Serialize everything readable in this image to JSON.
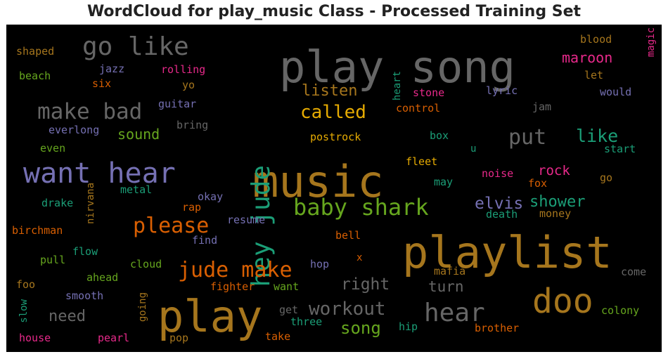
{
  "title": "WordCloud for play_music Class - Processed Training Set",
  "chart_data": {
    "type": "wordcloud",
    "title": "WordCloud for play_music Class - Processed Training Set",
    "background": "#000000",
    "palette": [
      "#1b9e77",
      "#d95f02",
      "#7570b3",
      "#e7298a",
      "#66a61e",
      "#e6ab02",
      "#a6761d",
      "#666666"
    ],
    "words": [
      {
        "text": "play song",
        "weight": 100,
        "color": "#666666"
      },
      {
        "text": "music",
        "weight": 97,
        "color": "#a6761d"
      },
      {
        "text": "playlist",
        "weight": 96,
        "color": "#a6761d"
      },
      {
        "text": "play",
        "weight": 95,
        "color": "#a6761d"
      },
      {
        "text": "doo",
        "weight": 70,
        "color": "#a6761d"
      },
      {
        "text": "want hear",
        "weight": 62,
        "color": "#7570b3"
      },
      {
        "text": "hey jude",
        "weight": 58,
        "color": "#1b9e77"
      },
      {
        "text": "go like",
        "weight": 54,
        "color": "#666666"
      },
      {
        "text": "hear",
        "weight": 54,
        "color": "#666666"
      },
      {
        "text": "baby shark",
        "weight": 47,
        "color": "#66a61e"
      },
      {
        "text": "make bad",
        "weight": 47,
        "color": "#666666"
      },
      {
        "text": "jude make",
        "weight": 45,
        "color": "#d95f02"
      },
      {
        "text": "please",
        "weight": 45,
        "color": "#d95f02"
      },
      {
        "text": "put",
        "weight": 45,
        "color": "#666666"
      },
      {
        "text": "workout",
        "weight": 39,
        "color": "#666666"
      },
      {
        "text": "called",
        "weight": 39,
        "color": "#e6ab02"
      },
      {
        "text": "like",
        "weight": 37,
        "color": "#1b9e77"
      },
      {
        "text": "song",
        "weight": 36,
        "color": "#66a61e"
      },
      {
        "text": "right",
        "weight": 34,
        "color": "#666666"
      },
      {
        "text": "elvis",
        "weight": 34,
        "color": "#7570b3"
      },
      {
        "text": "listen",
        "weight": 32,
        "color": "#a6761d"
      },
      {
        "text": "need",
        "weight": 32,
        "color": "#666666"
      },
      {
        "text": "shower",
        "weight": 32,
        "color": "#1b9e77"
      },
      {
        "text": "turn",
        "weight": 31,
        "color": "#666666"
      },
      {
        "text": "sound",
        "weight": 30,
        "color": "#66a61e"
      },
      {
        "text": "maroon",
        "weight": 30,
        "color": "#e7298a"
      },
      {
        "text": "rock",
        "weight": 29,
        "color": "#e7298a"
      },
      {
        "text": "rolling",
        "weight": 22,
        "color": "#e7298a"
      },
      {
        "text": "jazz",
        "weight": 21,
        "color": "#7570b3"
      },
      {
        "text": "shaped",
        "weight": 21,
        "color": "#a6761d"
      },
      {
        "text": "beach",
        "weight": 21,
        "color": "#66a61e"
      },
      {
        "text": "six",
        "weight": 20,
        "color": "#d95f02"
      },
      {
        "text": "yo",
        "weight": 20,
        "color": "#a6761d"
      },
      {
        "text": "guitar",
        "weight": 20,
        "color": "#7570b3"
      },
      {
        "text": "everlong",
        "weight": 20,
        "color": "#7570b3"
      },
      {
        "text": "bring",
        "weight": 20,
        "color": "#666666"
      },
      {
        "text": "even",
        "weight": 19,
        "color": "#66a61e"
      },
      {
        "text": "blood",
        "weight": 20,
        "color": "#a6761d"
      },
      {
        "text": "magic",
        "weight": 19,
        "color": "#e7298a"
      },
      {
        "text": "heart",
        "weight": 19,
        "color": "#1b9e77"
      },
      {
        "text": "let",
        "weight": 19,
        "color": "#a6761d"
      },
      {
        "text": "stone",
        "weight": 20,
        "color": "#e7298a"
      },
      {
        "text": "lyric",
        "weight": 20,
        "color": "#7570b3"
      },
      {
        "text": "would",
        "weight": 20,
        "color": "#7570b3"
      },
      {
        "text": "control",
        "weight": 20,
        "color": "#d95f02"
      },
      {
        "text": "jam",
        "weight": 19,
        "color": "#666666"
      },
      {
        "text": "postrock",
        "weight": 20,
        "color": "#e6ab02"
      },
      {
        "text": "box",
        "weight": 19,
        "color": "#1b9e77"
      },
      {
        "text": "u",
        "weight": 18,
        "color": "#1b9e77"
      },
      {
        "text": "start",
        "weight": 19,
        "color": "#1b9e77"
      },
      {
        "text": "fleet",
        "weight": 20,
        "color": "#e6ab02"
      },
      {
        "text": "noise",
        "weight": 20,
        "color": "#e7298a"
      },
      {
        "text": "may",
        "weight": 19,
        "color": "#1b9e77"
      },
      {
        "text": "fox",
        "weight": 19,
        "color": "#d95f02"
      },
      {
        "text": "go",
        "weight": 19,
        "color": "#a6761d"
      },
      {
        "text": "death",
        "weight": 19,
        "color": "#1b9e77"
      },
      {
        "text": "money",
        "weight": 19,
        "color": "#a6761d"
      },
      {
        "text": "metal",
        "weight": 19,
        "color": "#1b9e77"
      },
      {
        "text": "nirvana",
        "weight": 18,
        "color": "#a6761d"
      },
      {
        "text": "drake",
        "weight": 20,
        "color": "#1b9e77"
      },
      {
        "text": "okay",
        "weight": 19,
        "color": "#7570b3"
      },
      {
        "text": "rap",
        "weight": 19,
        "color": "#d95f02"
      },
      {
        "text": "resume",
        "weight": 19,
        "color": "#7570b3"
      },
      {
        "text": "birchman",
        "weight": 20,
        "color": "#d95f02"
      },
      {
        "text": "find",
        "weight": 19,
        "color": "#7570b3"
      },
      {
        "text": "bell",
        "weight": 19,
        "color": "#d95f02"
      },
      {
        "text": "flow",
        "weight": 19,
        "color": "#1b9e77"
      },
      {
        "text": "pull",
        "weight": 19,
        "color": "#66a61e"
      },
      {
        "text": "cloud",
        "weight": 19,
        "color": "#66a61e"
      },
      {
        "text": "hop",
        "weight": 19,
        "color": "#7570b3"
      },
      {
        "text": "x",
        "weight": 18,
        "color": "#d95f02"
      },
      {
        "text": "mafia",
        "weight": 19,
        "color": "#a6761d"
      },
      {
        "text": "come",
        "weight": 19,
        "color": "#666666"
      },
      {
        "text": "ahead",
        "weight": 19,
        "color": "#66a61e"
      },
      {
        "text": "foo",
        "weight": 19,
        "color": "#a6761d"
      },
      {
        "text": "fighter",
        "weight": 19,
        "color": "#d95f02"
      },
      {
        "text": "want",
        "weight": 19,
        "color": "#66a61e"
      },
      {
        "text": "smooth",
        "weight": 19,
        "color": "#7570b3"
      },
      {
        "text": "going",
        "weight": 18,
        "color": "#a6761d"
      },
      {
        "text": "slow",
        "weight": 18,
        "color": "#1b9e77"
      },
      {
        "text": "get",
        "weight": 19,
        "color": "#666666"
      },
      {
        "text": "colony",
        "weight": 19,
        "color": "#66a61e"
      },
      {
        "text": "three",
        "weight": 19,
        "color": "#1b9e77"
      },
      {
        "text": "hip",
        "weight": 19,
        "color": "#1b9e77"
      },
      {
        "text": "brother",
        "weight": 19,
        "color": "#d95f02"
      },
      {
        "text": "house",
        "weight": 19,
        "color": "#e7298a"
      },
      {
        "text": "pearl",
        "weight": 19,
        "color": "#e7298a"
      },
      {
        "text": "pop",
        "weight": 19,
        "color": "#a6761d"
      },
      {
        "text": "take",
        "weight": 19,
        "color": "#d95f02"
      }
    ]
  }
}
